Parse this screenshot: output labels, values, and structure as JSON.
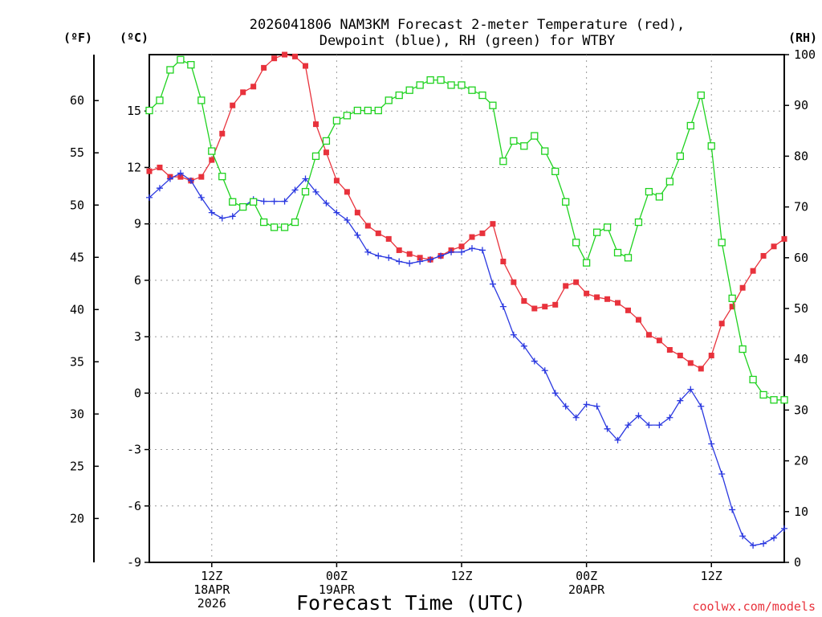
{
  "chart_data": {
    "type": "line",
    "title_line1": "2026041806 NAM3KM Forecast 2-meter Temperature (red),",
    "title_line2": "Dewpoint (blue), RH (green) for WTBY",
    "xlabel": "Forecast Time (UTC)",
    "credit": "coolwx.com/models",
    "left_unit_f": "(ºF)",
    "left_unit_c": "(ºC)",
    "right_unit": "(RH)",
    "x_hours_range": [
      1,
      62
    ],
    "ylim_c": [
      -9,
      18
    ],
    "ylim_rh": [
      0,
      100
    ],
    "yticks_c": [
      "-9",
      "-6",
      "-3",
      "0",
      "3",
      "6",
      "9",
      "12",
      "15"
    ],
    "yticks_f": [
      "20",
      "25",
      "30",
      "35",
      "40",
      "45",
      "50",
      "55",
      "60"
    ],
    "yticks_rh": [
      "0",
      "10",
      "20",
      "30",
      "40",
      "50",
      "60",
      "70",
      "80",
      "90",
      "100"
    ],
    "xticks": [
      {
        "hour": 7,
        "lines": [
          "12Z",
          "18APR",
          "2026"
        ]
      },
      {
        "hour": 19,
        "lines": [
          "00Z",
          "19APR"
        ]
      },
      {
        "hour": 31,
        "lines": [
          "12Z"
        ]
      },
      {
        "hour": 43,
        "lines": [
          "00Z",
          "20APR"
        ]
      },
      {
        "hour": 55,
        "lines": [
          "12Z"
        ]
      }
    ],
    "series": [
      {
        "name": "2-meter Temperature",
        "unit": "C",
        "color": "#e8323c",
        "marker": "filled-square",
        "values": [
          11.8,
          12.0,
          11.5,
          11.5,
          11.3,
          11.5,
          12.4,
          13.8,
          15.3,
          16.0,
          16.3,
          17.3,
          17.8,
          18.0,
          17.9,
          17.4,
          14.3,
          12.8,
          11.3,
          10.7,
          9.6,
          8.9,
          8.5,
          8.2,
          7.6,
          7.4,
          7.2,
          7.1,
          7.3,
          7.6,
          7.8,
          8.3,
          8.5,
          9.0,
          7.0,
          5.9,
          4.9,
          4.5,
          4.6,
          4.7,
          5.7,
          5.9,
          5.3,
          5.1,
          5.0,
          4.8,
          4.4,
          3.9,
          3.1,
          2.8,
          2.3,
          2.0,
          1.6,
          1.3,
          2.0,
          3.7,
          4.6,
          5.6,
          6.5,
          7.3,
          7.8,
          8.2
        ]
      },
      {
        "name": "Dewpoint",
        "unit": "C",
        "color": "#2a38e0",
        "marker": "plus",
        "values": [
          10.4,
          10.9,
          11.4,
          11.7,
          11.3,
          10.4,
          9.6,
          9.3,
          9.4,
          9.9,
          10.3,
          10.2,
          10.2,
          10.2,
          10.8,
          11.4,
          10.7,
          10.1,
          9.6,
          9.2,
          8.4,
          7.5,
          7.3,
          7.2,
          7.0,
          6.9,
          7.0,
          7.1,
          7.3,
          7.5,
          7.5,
          7.7,
          7.6,
          5.8,
          4.6,
          3.1,
          2.5,
          1.7,
          1.2,
          0.0,
          -0.7,
          -1.3,
          -0.6,
          -0.7,
          -1.9,
          -2.5,
          -1.7,
          -1.2,
          -1.7,
          -1.7,
          -1.3,
          -0.4,
          0.2,
          -0.7,
          -2.7,
          -4.3,
          -6.2,
          -7.6,
          -8.1,
          -8.0,
          -7.7,
          -7.2
        ]
      },
      {
        "name": "RH",
        "unit": "%",
        "color": "#1fd21f",
        "marker": "open-square",
        "values": [
          89,
          91,
          97,
          99,
          98,
          91,
          81,
          76,
          71,
          70,
          71,
          67,
          66,
          66,
          67,
          73,
          80,
          83,
          87,
          88,
          89,
          89,
          89,
          91,
          92,
          93,
          94,
          95,
          95,
          94,
          94,
          93,
          92,
          90,
          79,
          83,
          82,
          84,
          81,
          77,
          71,
          63,
          59,
          65,
          66,
          61,
          60,
          67,
          73,
          72,
          75,
          80,
          86,
          92,
          82,
          63,
          52,
          42,
          36,
          33,
          32,
          32
        ]
      }
    ]
  }
}
